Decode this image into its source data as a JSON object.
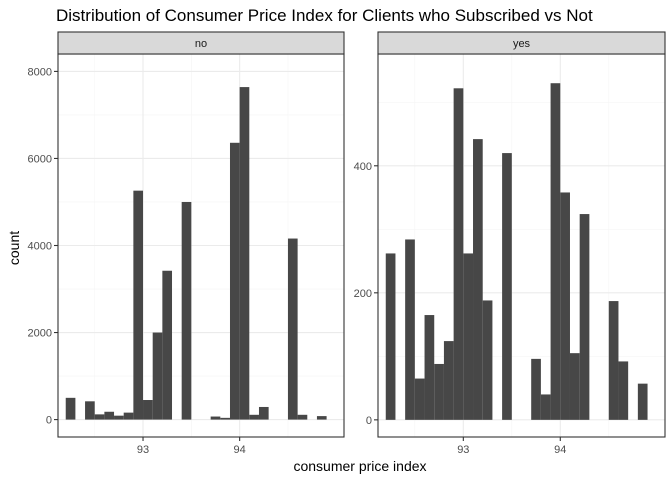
{
  "chart_data": {
    "type": "bar",
    "title": "Distribution of Consumer Price Index for Clients who Subscribed vs Not",
    "xlabel": "consumer price index",
    "ylabel": "count",
    "xlim": [
      92.12,
      95.08
    ],
    "x_ticks": [
      93,
      94
    ],
    "bin_width": 0.1,
    "grid": true,
    "panels": [
      {
        "strip": "no",
        "ylim": [
          -400,
          8400
        ],
        "y_ticks": [
          0,
          2000,
          4000,
          6000,
          8000
        ],
        "bins": [
          {
            "x": 92.25,
            "y": 500
          },
          {
            "x": 92.45,
            "y": 420
          },
          {
            "x": 92.55,
            "y": 120
          },
          {
            "x": 92.65,
            "y": 180
          },
          {
            "x": 92.75,
            "y": 90
          },
          {
            "x": 92.85,
            "y": 160
          },
          {
            "x": 92.95,
            "y": 5260
          },
          {
            "x": 93.05,
            "y": 450
          },
          {
            "x": 93.15,
            "y": 2000
          },
          {
            "x": 93.25,
            "y": 3420
          },
          {
            "x": 93.45,
            "y": 5000
          },
          {
            "x": 93.75,
            "y": 70
          },
          {
            "x": 93.85,
            "y": 40
          },
          {
            "x": 93.95,
            "y": 6360
          },
          {
            "x": 94.05,
            "y": 7640
          },
          {
            "x": 94.15,
            "y": 110
          },
          {
            "x": 94.25,
            "y": 290
          },
          {
            "x": 94.55,
            "y": 4160
          },
          {
            "x": 94.65,
            "y": 110
          },
          {
            "x": 94.85,
            "y": 80
          }
        ]
      },
      {
        "strip": "yes",
        "ylim": [
          -27,
          576
        ],
        "y_ticks": [
          0,
          200,
          400
        ],
        "bins": [
          {
            "x": 92.25,
            "y": 262
          },
          {
            "x": 92.45,
            "y": 284
          },
          {
            "x": 92.55,
            "y": 65
          },
          {
            "x": 92.65,
            "y": 165
          },
          {
            "x": 92.75,
            "y": 88
          },
          {
            "x": 92.85,
            "y": 124
          },
          {
            "x": 92.95,
            "y": 522
          },
          {
            "x": 93.05,
            "y": 262
          },
          {
            "x": 93.15,
            "y": 442
          },
          {
            "x": 93.25,
            "y": 188
          },
          {
            "x": 93.45,
            "y": 420
          },
          {
            "x": 93.75,
            "y": 96
          },
          {
            "x": 93.85,
            "y": 40
          },
          {
            "x": 93.95,
            "y": 530
          },
          {
            "x": 94.05,
            "y": 358
          },
          {
            "x": 94.15,
            "y": 105
          },
          {
            "x": 94.25,
            "y": 324
          },
          {
            "x": 94.55,
            "y": 187
          },
          {
            "x": 94.65,
            "y": 92
          },
          {
            "x": 94.85,
            "y": 57
          }
        ]
      }
    ]
  }
}
